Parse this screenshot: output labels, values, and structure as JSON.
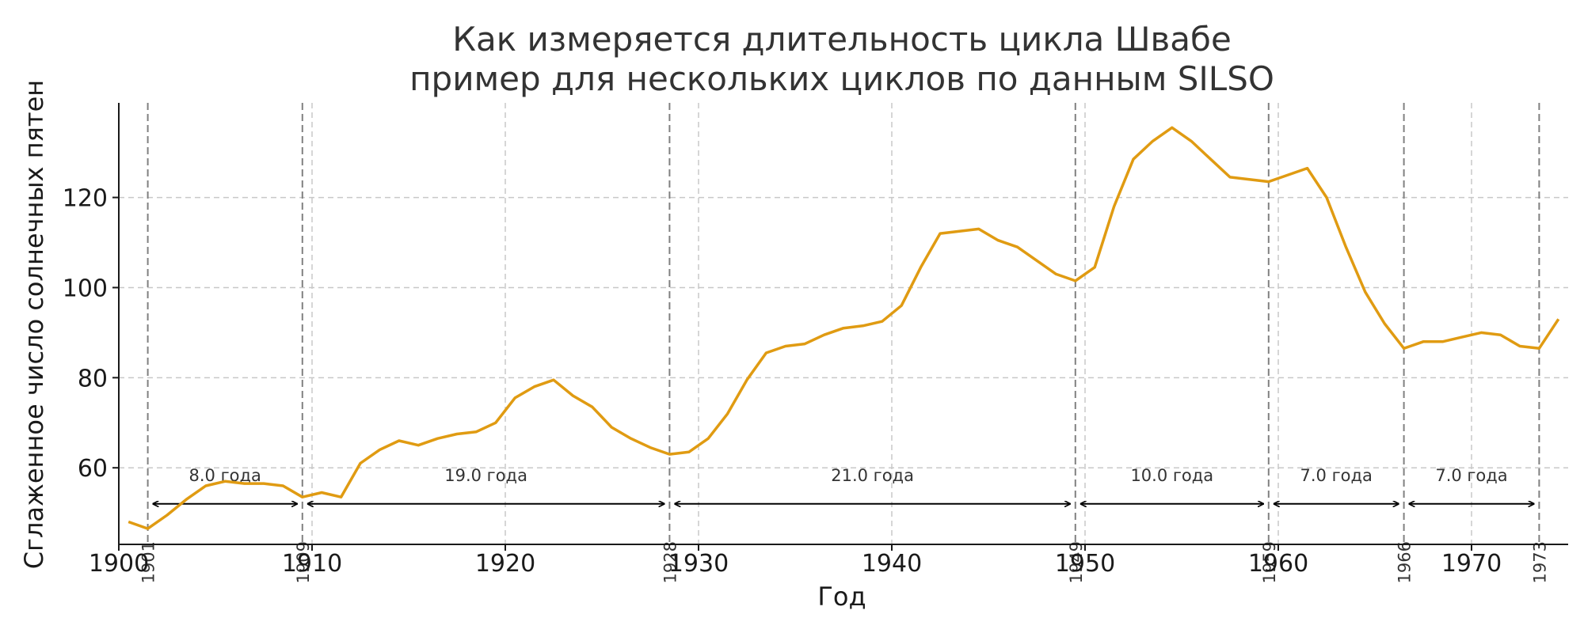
{
  "chart_data": {
    "type": "line",
    "title": "Как измеряется длительность цикла Швабе",
    "subtitle": "пример для нескольких циклов по данным SILSO",
    "xlabel": "Год",
    "ylabel": "Сглаженное число солнечных пятен",
    "xlim": [
      1900,
      1975
    ],
    "ylim": [
      43,
      141
    ],
    "x_ticks": [
      1900,
      1910,
      1920,
      1930,
      1940,
      1950,
      1960,
      1970
    ],
    "y_ticks": [
      60,
      80,
      100,
      120
    ],
    "grid": true,
    "line_color": "#e09b12",
    "series": [
      {
        "x": [
          1900.5,
          1901.5,
          1902.5,
          1903.5,
          1904.5,
          1905.5,
          1906.5,
          1907.5,
          1908.5,
          1909.5,
          1910.5,
          1911.5,
          1912.5,
          1913.5,
          1914.5,
          1915.5,
          1916.5,
          1917.5,
          1918.5,
          1919.5,
          1920.5,
          1921.5,
          1922.5,
          1923.5,
          1924.5,
          1925.5,
          1926.5,
          1927.5,
          1928.5,
          1929.5,
          1930.5,
          1931.5,
          1932.5,
          1933.5,
          1934.5,
          1935.5,
          1936.5,
          1937.5,
          1938.5,
          1939.5,
          1940.5,
          1941.5,
          1942.5,
          1943.5,
          1944.5,
          1945.5,
          1946.5,
          1947.5,
          1948.5,
          1949.5,
          1950.5,
          1951.5,
          1952.5,
          1953.5,
          1954.5,
          1955.5,
          1956.5,
          1957.5,
          1958.5,
          1959.5,
          1960.5,
          1961.5,
          1962.5,
          1963.5,
          1964.5,
          1965.5,
          1966.5,
          1967.5,
          1968.5,
          1969.5,
          1970.5,
          1971.5,
          1972.5,
          1973.5,
          1974.5
        ],
        "y": [
          48,
          46.5,
          49.5,
          53,
          56,
          57,
          56.5,
          56.5,
          56,
          53.5,
          54.5,
          53.5,
          61,
          64,
          66,
          65,
          66.5,
          67.5,
          68,
          70,
          75.5,
          78,
          79.5,
          76,
          73.5,
          69,
          66.5,
          64.5,
          63,
          63.5,
          66.5,
          72,
          79.5,
          85.5,
          87,
          87.5,
          89.5,
          91,
          91.5,
          92.5,
          96,
          104.5,
          112,
          112.5,
          113,
          110.5,
          109,
          106,
          103,
          101.5,
          104.5,
          118,
          128.5,
          132.5,
          135.5,
          132.5,
          128.5,
          124.5,
          124,
          123.5,
          125,
          126.5,
          120,
          109,
          99,
          92,
          86.5,
          88,
          88,
          89,
          90,
          89.5,
          87,
          86.5,
          93
        ]
      }
    ],
    "minima": [
      {
        "year": 1901.5,
        "label": "1901"
      },
      {
        "year": 1909.5,
        "label": "1909"
      },
      {
        "year": 1928.5,
        "label": "1928"
      },
      {
        "year": 1949.5,
        "label": "1949"
      },
      {
        "year": 1959.5,
        "label": "1959"
      },
      {
        "year": 1966.5,
        "label": "1966"
      },
      {
        "year": 1973.5,
        "label": "1973"
      }
    ],
    "cycle_lengths": [
      "8.0 года",
      "19.0 года",
      "21.0 года",
      "10.0 года",
      "7.0 года",
      "7.0 года"
    ],
    "arrow_level": 52
  }
}
